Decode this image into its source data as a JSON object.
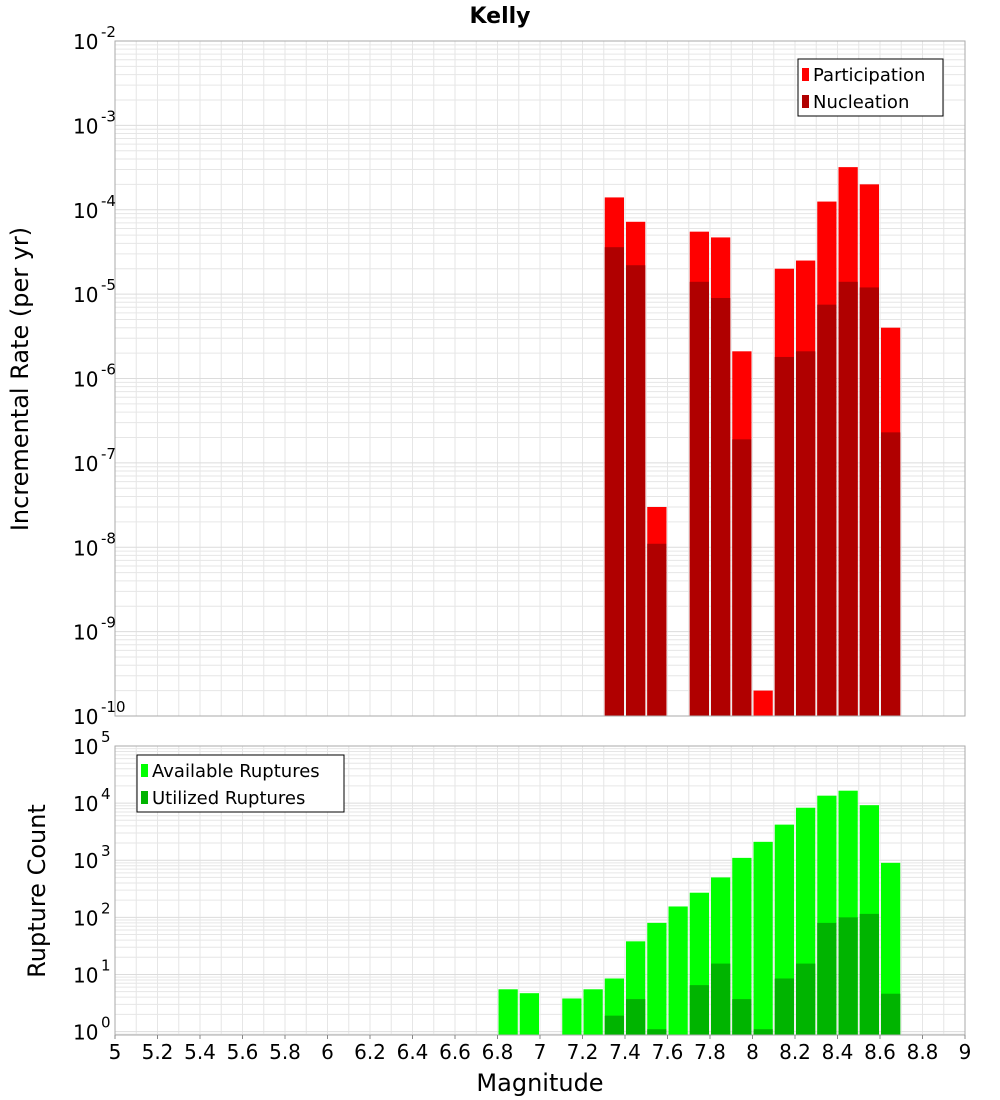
{
  "title": "Kelly",
  "colors": {
    "participation": "#ff0000",
    "nucleation": "#b00000",
    "available": "#00ff00",
    "utilized": "#00b400",
    "grid": "#e6e6e6",
    "frame": "#aaaaaa"
  },
  "chart_data": [
    {
      "type": "bar",
      "name": "rate-panel",
      "ylabel": "Incremental Rate (per yr)",
      "yscale": "log",
      "ylim_exp": [
        -10,
        -2
      ],
      "xlim": [
        5,
        9
      ],
      "bar_width": 0.1,
      "legend": {
        "placement": "top-right",
        "entries": [
          "Participation",
          "Nucleation"
        ]
      },
      "series": [
        {
          "name": "Participation",
          "x": [
            7.35,
            7.45,
            7.55,
            7.75,
            7.85,
            7.95,
            8.05,
            8.15,
            8.25,
            8.35,
            8.45,
            8.55,
            8.65
          ],
          "values": [
            0.00014,
            7.2e-05,
            3e-08,
            5.5e-05,
            4.7e-05,
            2.1e-06,
            2e-10,
            2e-05,
            2.5e-05,
            0.000125,
            0.00032,
            0.0002,
            4e-06
          ]
        },
        {
          "name": "Nucleation",
          "x": [
            7.35,
            7.45,
            7.55,
            7.75,
            7.85,
            7.95,
            8.15,
            8.25,
            8.35,
            8.45,
            8.55,
            8.65
          ],
          "values": [
            3.6e-05,
            2.2e-05,
            1.1e-08,
            1.4e-05,
            9e-06,
            1.9e-07,
            1.8e-06,
            2.1e-06,
            7.5e-06,
            1.4e-05,
            1.2e-05,
            2.3e-07
          ]
        }
      ],
      "y_ticks": [
        {
          "base": "10",
          "exp": "-10"
        },
        {
          "base": "10",
          "exp": "-9"
        },
        {
          "base": "10",
          "exp": "-8"
        },
        {
          "base": "10",
          "exp": "-7"
        },
        {
          "base": "10",
          "exp": "-6"
        },
        {
          "base": "10",
          "exp": "-5"
        },
        {
          "base": "10",
          "exp": "-4"
        },
        {
          "base": "10",
          "exp": "-3"
        },
        {
          "base": "10",
          "exp": "-2"
        }
      ]
    },
    {
      "type": "bar",
      "name": "count-panel",
      "ylabel": "Rupture Count",
      "xlabel": "Magnitude",
      "yscale": "log",
      "ylim_exp": [
        -0.06,
        5
      ],
      "xlim": [
        5,
        9
      ],
      "bar_width": 0.1,
      "legend": {
        "placement": "top-left",
        "entries": [
          "Available Ruptures",
          "Utilized Ruptures"
        ]
      },
      "series": [
        {
          "name": "Available Ruptures",
          "x": [
            6.85,
            6.95,
            7.15,
            7.25,
            7.35,
            7.45,
            7.55,
            7.65,
            7.75,
            7.85,
            7.95,
            8.05,
            8.15,
            8.25,
            8.35,
            8.45,
            8.55,
            8.65
          ],
          "values": [
            5.5,
            4.7,
            3.8,
            5.5,
            8.5,
            38,
            80,
            155,
            270,
            500,
            1100,
            2100,
            4200,
            8300,
            13500,
            16500,
            9200,
            900
          ]
        },
        {
          "name": "Utilized Ruptures",
          "x": [
            7.35,
            7.45,
            7.55,
            7.75,
            7.85,
            7.95,
            8.05,
            8.15,
            8.25,
            8.35,
            8.45,
            8.55,
            8.65
          ],
          "values": [
            1.9,
            3.7,
            1.1,
            6.5,
            15.5,
            3.7,
            1.1,
            8.5,
            15.5,
            80,
            100,
            115,
            4.6
          ]
        }
      ],
      "y_ticks": [
        {
          "base": "10",
          "exp": "0"
        },
        {
          "base": "10",
          "exp": "1"
        },
        {
          "base": "10",
          "exp": "2"
        },
        {
          "base": "10",
          "exp": "3"
        },
        {
          "base": "10",
          "exp": "4"
        },
        {
          "base": "10",
          "exp": "5"
        }
      ],
      "x_ticks": [
        "5",
        "5.2",
        "5.4",
        "5.6",
        "5.8",
        "6",
        "6.2",
        "6.4",
        "6.6",
        "6.8",
        "7",
        "7.2",
        "7.4",
        "7.6",
        "7.8",
        "8",
        "8.2",
        "8.4",
        "8.6",
        "8.8",
        "9"
      ]
    }
  ]
}
